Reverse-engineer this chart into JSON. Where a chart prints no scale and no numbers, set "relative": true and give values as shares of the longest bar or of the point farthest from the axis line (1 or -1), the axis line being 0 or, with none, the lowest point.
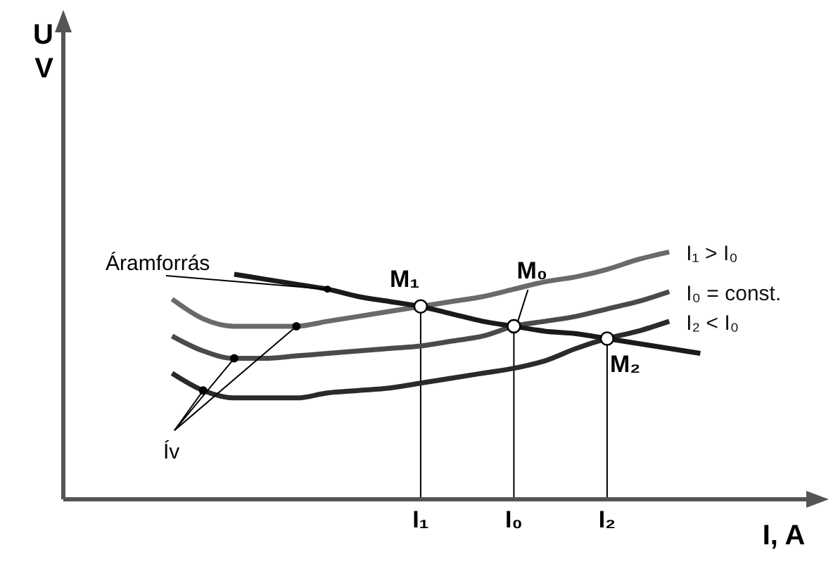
{
  "chart_data": {
    "type": "line",
    "relative": true,
    "xlabel": "I,  A",
    "legend": false,
    "grid": false,
    "marker": "none",
    "line_style": "solid",
    "categories": [
      null,
      null,
      null,
      null,
      null,
      null,
      null,
      null,
      null,
      null,
      null,
      "I₁",
      null,
      null,
      "I₀",
      null,
      null,
      "I₂",
      null,
      null,
      null,
      null,
      null,
      null
    ],
    "series": [
      {
        "name": "I₁ > I₀",
        "color": "#6a6a6a",
        "values": [
          null,
          null,
          null,
          0.81,
          0.73,
          0.7,
          0.7,
          0.7,
          0.72,
          0.74,
          0.76,
          0.78,
          0.8,
          0.82,
          0.85,
          0.88,
          0.9,
          0.93,
          0.97,
          1,
          null,
          null,
          null,
          null
        ]
      },
      {
        "name": "I₀ = const.",
        "color": "#4a4a4a",
        "values": [
          null,
          null,
          null,
          0.66,
          0.6,
          0.57,
          0.57,
          0.58,
          0.59,
          0.6,
          0.61,
          0.62,
          0.64,
          0.66,
          0.7,
          0.72,
          0.74,
          0.77,
          0.8,
          0.84,
          null,
          null,
          null,
          null
        ]
      },
      {
        "name": "I₂ < I₀",
        "color": "#2a2a2a",
        "values": [
          null,
          null,
          null,
          0.51,
          0.44,
          0.41,
          0.41,
          0.41,
          0.43,
          0.44,
          0.45,
          0.47,
          0.49,
          0.51,
          0.53,
          0.56,
          0.61,
          0.65,
          0.68,
          0.72,
          null,
          null,
          null,
          null
        ]
      },
      {
        "color": "#1a1a1a",
        "values": [
          null,
          null,
          null,
          null,
          null,
          0.91,
          0.89,
          0.87,
          0.85,
          0.82,
          0.8,
          0.78,
          0.75,
          0.72,
          0.7,
          0.68,
          0.67,
          0.65,
          0.63,
          0.61,
          0.59,
          null,
          null,
          null
        ]
      }
    ],
    "ref_lines": [
      {
        "axis": "x",
        "value": "I₁",
        "color": "#000000"
      },
      {
        "axis": "x",
        "value": "I₀",
        "color": "#000000"
      },
      {
        "axis": "x",
        "value": "I₂",
        "color": "#000000"
      }
    ],
    "annotations": [
      "Áramforrás",
      "Ív",
      "U V",
      {
        "text": "M₁",
        "x": "I₁",
        "y": 0.78
      },
      {
        "text": "M₀",
        "x": "I₀",
        "y": 0.7
      },
      {
        "text": "M₂",
        "x": "I₂",
        "y": 0.65
      }
    ]
  }
}
